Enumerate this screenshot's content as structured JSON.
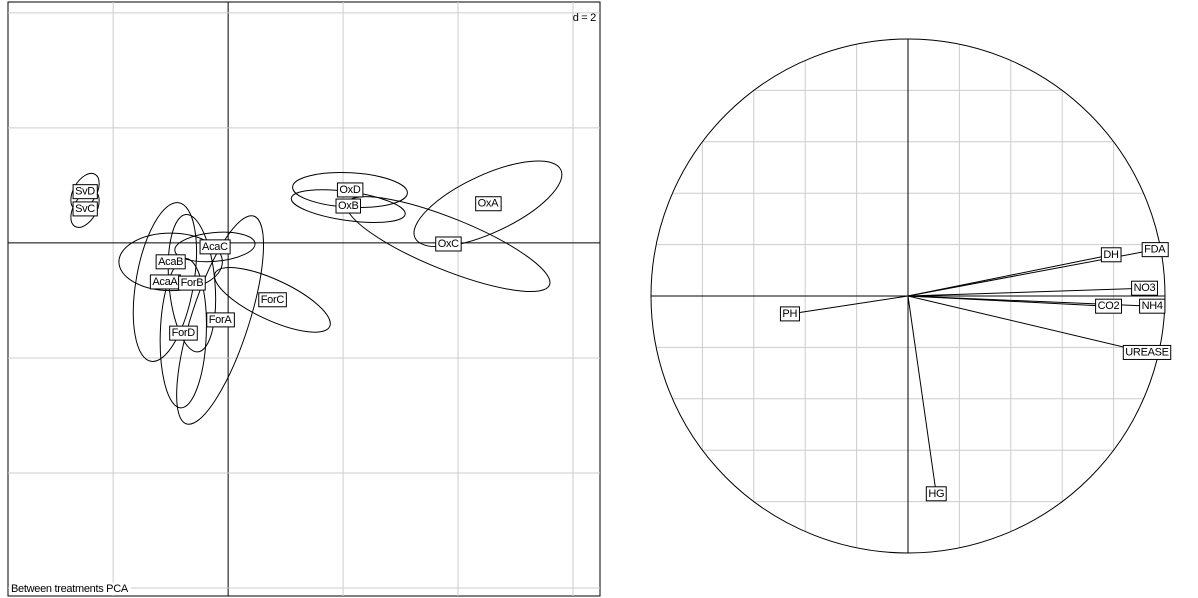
{
  "chart_data": [
    {
      "type": "scatter",
      "annotation": "d = 2",
      "subtitle": "Between treatments PCA",
      "xlim": [
        -3.83,
        6.47
      ],
      "ylim": [
        -6.14,
        4.19
      ],
      "xticks": [
        -2,
        0,
        2,
        4,
        6
      ],
      "yticks": [
        4,
        2,
        0,
        -2,
        -4,
        -6
      ],
      "grid": true,
      "labels": [
        "SvD",
        "SvC",
        "OxD",
        "OxB",
        "OxA",
        "OxC",
        "AcaC",
        "AcaB",
        "AcaA",
        "ForB",
        "ForA",
        "ForC",
        "ForD"
      ],
      "x": [
        -2.49,
        -2.49,
        2.12,
        2.09,
        4.52,
        3.83,
        -0.23,
        -1.0,
        -1.1,
        -0.63,
        -0.14,
        0.77,
        -0.78
      ],
      "y": [
        0.89,
        0.59,
        0.92,
        0.64,
        0.68,
        -0.02,
        -0.07,
        -0.33,
        -0.68,
        -0.7,
        -1.34,
        -0.99,
        -1.57
      ],
      "ellipse_rx": [
        0.35,
        0.35,
        1.0,
        1.0,
        1.4,
        1.9,
        0.7,
        0.9,
        1.4,
        1.2,
        1.9,
        1.1,
        1.3
      ],
      "ellipse_ry": [
        0.2,
        0.2,
        0.3,
        0.25,
        0.5,
        0.45,
        0.25,
        0.5,
        0.5,
        0.4,
        0.5,
        0.35,
        0.4
      ],
      "ellipse_angle": [
        60,
        60,
        -3,
        -8,
        25,
        -22,
        5,
        0,
        80,
        95,
        72,
        -25,
        88
      ]
    },
    {
      "type": "correlation-circle",
      "xlim": [
        -1,
        1
      ],
      "ylim": [
        -1,
        1
      ],
      "xticks": [
        -1,
        -0.8,
        -0.6,
        -0.4,
        -0.2,
        0,
        0.2,
        0.4,
        0.6,
        0.8,
        1
      ],
      "yticks": [
        -1,
        -0.8,
        -0.6,
        -0.4,
        -0.2,
        0,
        0.2,
        0.4,
        0.6,
        0.8,
        1
      ],
      "grid": true,
      "labels": [
        "DH",
        "FDA",
        "NO3",
        "CO2",
        "NH4",
        "UREASE",
        "PH",
        "HG"
      ],
      "x": [
        0.79,
        0.96,
        0.92,
        0.78,
        0.95,
        0.93,
        -0.46,
        0.11
      ],
      "y": [
        0.16,
        0.18,
        0.03,
        -0.04,
        -0.04,
        -0.22,
        -0.07,
        -0.77
      ]
    }
  ]
}
